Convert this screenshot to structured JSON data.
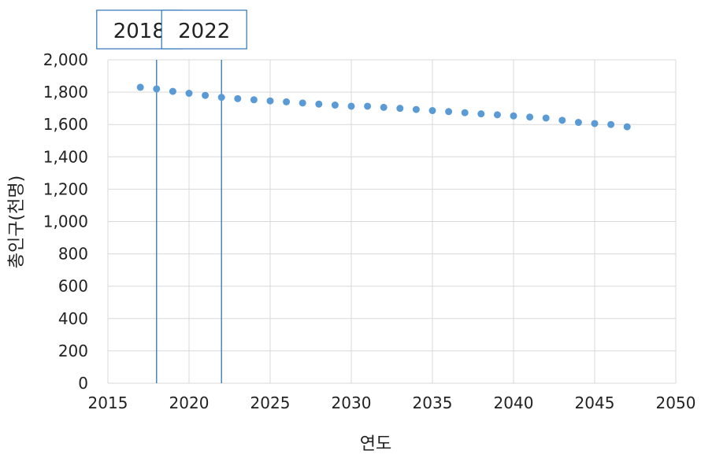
{
  "chart_data": {
    "type": "scatter",
    "title": "",
    "xlabel": "연도",
    "ylabel": "총인구(천명)",
    "xlim": [
      2015,
      2050
    ],
    "ylim": [
      0,
      2000
    ],
    "x_ticks": [
      "2015",
      "2020",
      "2025",
      "2030",
      "2035",
      "2040",
      "2045",
      "2050"
    ],
    "y_ticks": [
      "0",
      "200",
      "400",
      "600",
      "800",
      "1,000",
      "1,200",
      "1,400",
      "1,600",
      "1,800",
      "2,000"
    ],
    "grid": true,
    "legend": "none",
    "colors": {
      "points": "#5b9bd5",
      "marker_lines": "#2e75b6",
      "grid": "#d9d9d9"
    },
    "series": [
      {
        "x": [
          2017,
          2018,
          2019,
          2020,
          2021,
          2022,
          2023,
          2024,
          2025,
          2026,
          2027,
          2028,
          2029,
          2030,
          2031,
          2032,
          2033,
          2034,
          2035,
          2036,
          2037,
          2038,
          2039,
          2040,
          2041,
          2042,
          2043,
          2044,
          2045,
          2046,
          2047
        ],
        "y": [
          1830,
          1820,
          1805,
          1793,
          1780,
          1768,
          1760,
          1753,
          1746,
          1740,
          1733,
          1726,
          1720,
          1713,
          1713,
          1706,
          1700,
          1693,
          1686,
          1680,
          1673,
          1666,
          1660,
          1653,
          1646,
          1640,
          1626,
          1613,
          1606,
          1600,
          1586
        ]
      }
    ],
    "reference_lines": [
      {
        "x": 2018,
        "label": "2018"
      },
      {
        "x": 2022,
        "label": "2022"
      }
    ]
  }
}
